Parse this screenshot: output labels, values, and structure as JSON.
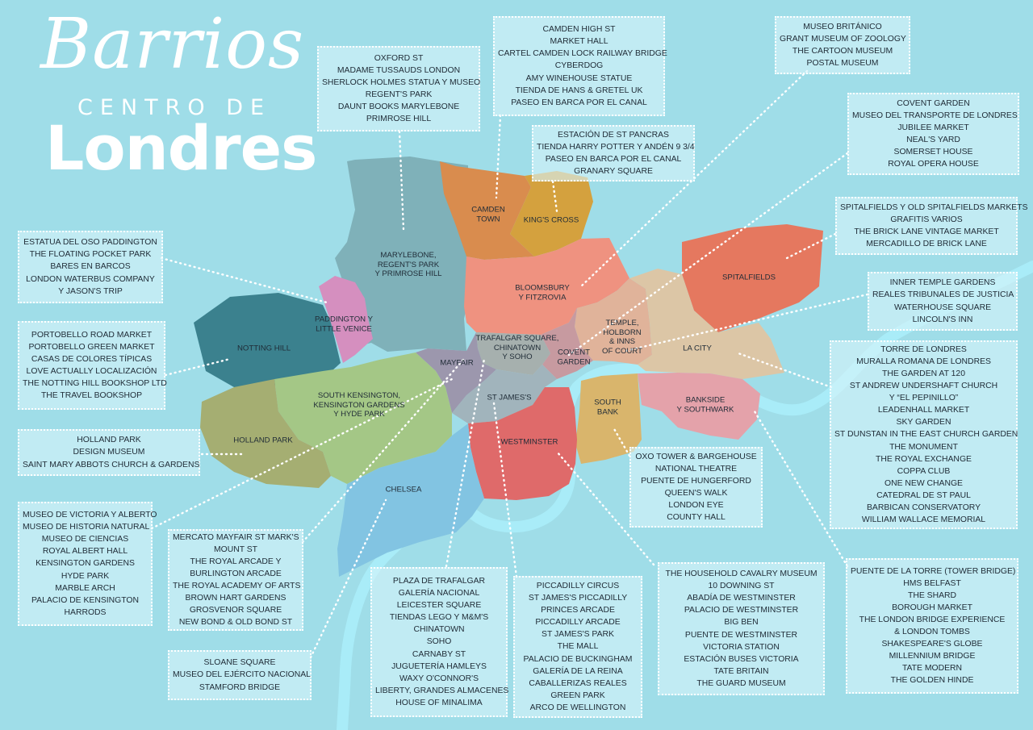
{
  "title": {
    "script": "Barrios",
    "subtitle": "CENTRO DE",
    "main": "Londres"
  },
  "colors": {
    "sea": "#9fdde8",
    "river": "#a9ecf8",
    "box_fill": "#d6f4fa",
    "box_border": "#ffffff",
    "text": "#1f2b36",
    "connector": "#ffffff"
  },
  "areas": {
    "camden": {
      "label": "CAMDEN\nTOWN",
      "color": "#d98c4e"
    },
    "kings_cross": {
      "label": "KING'S CROSS",
      "color": "#d4a13e"
    },
    "marylebone": {
      "label": "MARYLEBONE,\nREGENT'S PARK\nY PRIMROSE HILL",
      "color": "#7fb1b9"
    },
    "paddington": {
      "label": "PADDINGTON Y\nLITTLE VENICE",
      "color": "#d58fbf"
    },
    "notting_hill": {
      "label": "NOTTING HILL",
      "color": "#3b818e"
    },
    "bloomsbury": {
      "label": "BLOOMSBURY\nY FITZROVIA",
      "color": "#ef9280"
    },
    "spitalfields": {
      "label": "SPITALFIELDS",
      "color": "#e5785f"
    },
    "temple": {
      "label": "TEMPLE,\nHOLBORN\n& INNS\nOF COURT",
      "color": "#e0b39a"
    },
    "la_city": {
      "label": "LA CITY",
      "color": "#dcc6a6"
    },
    "trafalgar": {
      "label": "TRAFALGAR SQUARE,\nCHINATOWN\nY SOHO",
      "color": "#a6b0ae"
    },
    "covent_garden": {
      "label": "COVENT\nGARDEN",
      "color": "#c79aa0"
    },
    "mayfair": {
      "label": "MAYFAIR",
      "color": "#9c97ad"
    },
    "st_james": {
      "label": "ST JAMES'S",
      "color": "#a1b4bc"
    },
    "south_bank": {
      "label": "SOUTH\nBANK",
      "color": "#d9b56c"
    },
    "bankside": {
      "label": "BANKSIDE\nY SOUTHWARK",
      "color": "#e4a2aa"
    },
    "westminster": {
      "label": "WESTMINSTER",
      "color": "#df6a6a"
    },
    "south_kensington": {
      "label": "SOUTH KENSINGTON,\nKENSINGTON GARDENS\nY HYDE PARK",
      "color": "#a4c786"
    },
    "holland_park": {
      "label": "HOLLAND PARK",
      "color": "#a5ae72"
    },
    "chelsea": {
      "label": "CHELSEA",
      "color": "#82c4e2"
    }
  },
  "boxes": {
    "oxford": [
      "OXFORD ST",
      "MADAME TUSSAUDS LONDON",
      "SHERLOCK HOLMES STATUA Y MUSEO",
      "REGENT'S PARK",
      "DAUNT BOOKS MARYLEBONE",
      "PRIMROSE HILL"
    ],
    "camden_high": [
      "CAMDEN HIGH ST",
      "MARKET HALL",
      "CARTEL CAMDEN LOCK RAILWAY BRIDGE",
      "CYBERDOG",
      "AMY WINEHOUSE STATUE",
      "TIENDA DE HANS & GRETEL UK",
      "PASEO EN BARCA POR EL CANAL"
    ],
    "st_pancras": [
      "ESTACIÓN DE ST PANCRAS",
      "TIENDA HARRY POTTER Y ANDÉN 9 3/4",
      "PASEO EN BARCA POR EL CANAL",
      "GRANARY SQUARE"
    ],
    "museo_britanico": [
      "MUSEO BRITÁNICO",
      "GRANT MUSEUM OF ZOOLOGY",
      "THE CARTOON MUSEUM",
      "POSTAL MUSEUM"
    ],
    "covent": [
      "COVENT GARDEN",
      "MUSEO DEL TRANSPORTE DE LONDRES",
      "JUBILEE MARKET",
      "NEAL'S YARD",
      "SOMERSET HOUSE",
      "ROYAL OPERA HOUSE"
    ],
    "spitalfields_box": [
      "SPITALFIELDS Y OLD SPITALFIELDS MARKETS",
      "GRAFITIS VARIOS",
      "THE BRICK LANE VINTAGE MARKET",
      "MERCADILLO DE BRICK LANE"
    ],
    "inner_temple": [
      "INNER TEMPLE GARDENS",
      "REALES TRIBUNALES DE JUSTICIA",
      "WATERHOUSE SQUARE",
      "LINCOLN'S INN"
    ],
    "city": [
      "TORRE DE LONDRES",
      "MURALLA ROMANA DE LONDRES",
      "THE GARDEN AT 120",
      "ST ANDREW UNDERSHAFT CHURCH",
      "Y “EL PEPINILLO”",
      "LEADENHALL MARKET",
      "SKY GARDEN",
      "ST DUNSTAN IN THE EAST CHURCH GARDEN",
      "THE MONUMENT",
      "THE ROYAL EXCHANGE",
      "COPPA CLUB",
      "ONE NEW CHANGE",
      "CATEDRAL DE ST PAUL",
      "BARBICAN CONSERVATORY",
      "WILLIAM WALLACE MEMORIAL"
    ],
    "paddington_box": [
      "ESTATUA DEL OSO PADDINGTON",
      "THE FLOATING POCKET PARK",
      "BARES EN BARCOS",
      "LONDON WATERBUS COMPANY",
      "Y JASON'S TRIP"
    ],
    "portobello": [
      "PORTOBELLO ROAD MARKET",
      "PORTOBELLO GREEN MARKET",
      "CASAS DE COLORES TÍPICAS",
      "LOVE ACTUALLY LOCALIZACIÓN",
      "THE NOTTING HILL BOOKSHOP LTD",
      "THE TRAVEL BOOKSHOP"
    ],
    "holland": [
      "HOLLAND PARK",
      "DESIGN MUSEUM",
      "SAINT MARY ABBOTS CHURCH & GARDENS"
    ],
    "victoria": [
      "MUSEO DE VICTORIA Y ALBERTO",
      "MUSEO DE HISTORIA NATURAL",
      "MUSEO DE CIENCIAS",
      "ROYAL ALBERT HALL",
      "KENSINGTON GARDENS",
      "HYDE PARK",
      "MARBLE ARCH",
      "PALACIO DE KENSINGTON",
      "HARRODS"
    ],
    "mayfair_box": [
      "MERCATO MAYFAIR ST MARK'S",
      "MOUNT ST",
      "THE ROYAL ARCADE Y",
      "BURLINGTON ARCADE",
      "THE ROYAL ACADEMY OF ARTS",
      "BROWN HART GARDENS",
      "GROSVENOR SQUARE",
      "NEW BOND & OLD BOND ST"
    ],
    "sloane": [
      "SLOANE SQUARE",
      "MUSEO DEL EJÉRCITO NACIONAL",
      "STAMFORD BRIDGE"
    ],
    "trafalgar_box": [
      "PLAZA DE TRAFALGAR",
      "GALERÍA NACIONAL",
      "LEICESTER SQUARE",
      "TIENDAS LEGO Y M&M'S",
      "CHINATOWN",
      "SOHO",
      "CARNABY ST",
      "JUGUETERÍA HAMLEYS",
      "WAXY O'CONNOR'S",
      "LIBERTY, GRANDES ALMACENES",
      "HOUSE OF MINALIMA"
    ],
    "piccadilly": [
      "PICCADILLY CIRCUS",
      "ST JAMES'S PICCADILLY",
      "PRINCES ARCADE",
      "PICCADILLY ARCADE",
      "ST JAMES'S PARK",
      "THE MALL",
      "PALACIO DE BUCKINGHAM",
      "GALERÍA DE LA REINA",
      "CABALLERIZAS REALES",
      "GREEN PARK",
      "ARCO DE WELLINGTON"
    ],
    "oxo": [
      "OXO TOWER & BARGEHOUSE",
      "NATIONAL THEATRE",
      "PUENTE DE HUNGERFORD",
      "QUEEN'S WALK",
      "LONDON EYE",
      "COUNTY HALL"
    ],
    "westminster_box": [
      "THE HOUSEHOLD CAVALRY MUSEUM",
      "10 DOWNING ST",
      "ABADÍA DE WESTMINSTER",
      "PALACIO DE WESTMINSTER",
      "BIG BEN",
      "PUENTE DE WESTMINSTER",
      "VICTORIA STATION",
      "ESTACIÓN BUSES VICTORIA",
      "TATE BRITAIN",
      "THE GUARD MUSEUM"
    ],
    "tower": [
      "PUENTE DE LA TORRE (TOWER BRIDGE)",
      "HMS BELFAST",
      "THE SHARD",
      "BOROUGH MARKET",
      "THE LONDON BRIDGE EXPERIENCE",
      "& LONDON TOMBS",
      "SHAKESPEARE'S GLOBE",
      "MILLENNIUM BRIDGE",
      "TATE MODERN",
      "THE GOLDEN HINDE"
    ]
  }
}
